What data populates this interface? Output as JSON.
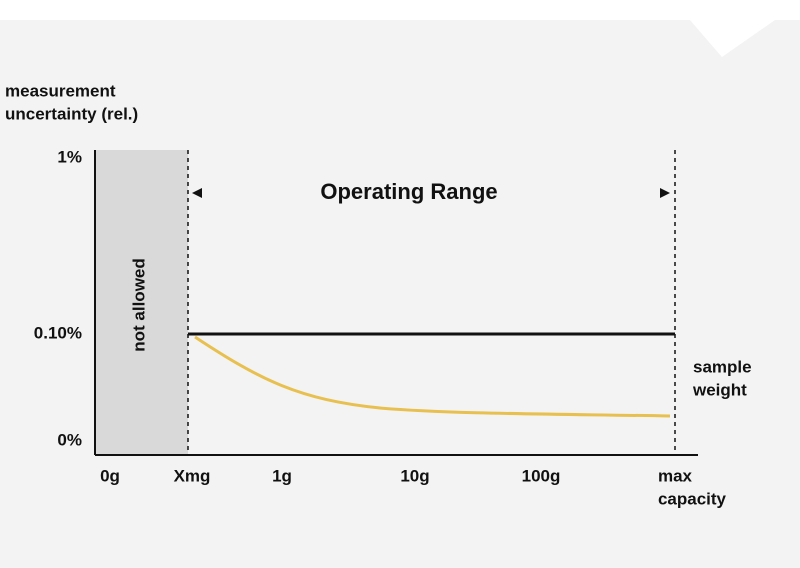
{
  "y_axis": {
    "title": [
      "measurement",
      "uncertainty (rel.)"
    ],
    "ticks": [
      "1%",
      "0.10%",
      "0%"
    ]
  },
  "x_axis": {
    "title": [
      "sample",
      "weight"
    ],
    "ticks": [
      "0g",
      "Xmg",
      "1g",
      "10g",
      "100g"
    ],
    "max_tick": [
      "max",
      "capacity"
    ]
  },
  "regions": {
    "not_allowed": "not allowed",
    "operating_range": "Operating Range"
  }
}
